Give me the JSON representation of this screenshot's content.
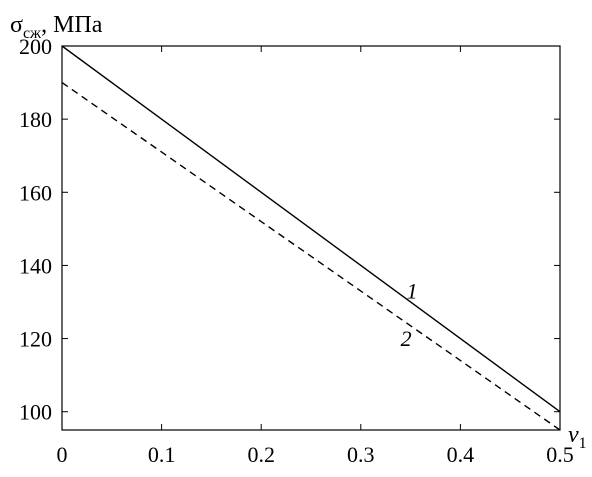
{
  "chart_data": {
    "type": "line",
    "ylabel": {
      "symbol": "σ",
      "subscript": "сж",
      "unit": ", МПа"
    },
    "xlabel": {
      "symbol": "v",
      "subscript": "1"
    },
    "xlim": [
      0,
      0.5
    ],
    "ylim": [
      95,
      200
    ],
    "xticks": [
      "0",
      "0.1",
      "0.2",
      "0.3",
      "0.4",
      "0.5"
    ],
    "yticks": [
      "100",
      "120",
      "140",
      "160",
      "180",
      "200"
    ],
    "grid": false,
    "series": [
      {
        "name": "1",
        "style": "solid",
        "x": [
          0,
          0.5
        ],
        "y": [
          200,
          100
        ]
      },
      {
        "name": "2",
        "style": "dashed",
        "x": [
          0,
          0.5
        ],
        "y": [
          190,
          95
        ]
      }
    ],
    "series_label_positions": [
      {
        "text": "1",
        "x": 0.346,
        "y": 131
      },
      {
        "text": "2",
        "x": 0.34,
        "y": 118
      }
    ]
  }
}
